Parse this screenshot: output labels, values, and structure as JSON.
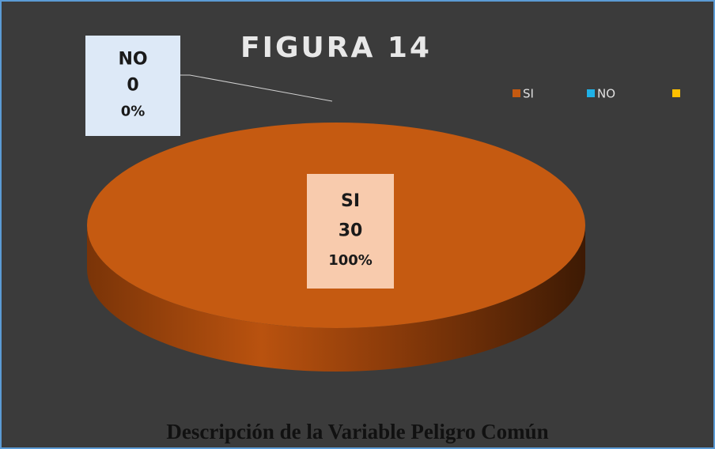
{
  "chart_data": {
    "type": "pie3d",
    "title": "FIGURA 14",
    "caption": "Descripción de la Variable Peligro Común",
    "categories": [
      "SI",
      "NO",
      null
    ],
    "values": [
      30,
      0,
      0
    ],
    "percent_labels": [
      "100%",
      "0%"
    ],
    "colors": [
      "#c55a11",
      "#1fb1e6",
      "#ffc000"
    ],
    "legend": "top-right"
  }
}
